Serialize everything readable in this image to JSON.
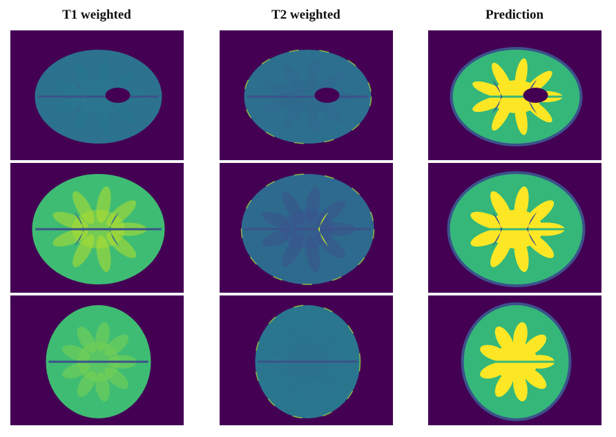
{
  "headers": [
    "T1 weighted",
    "T2 weighted",
    "Prediction"
  ]
}
